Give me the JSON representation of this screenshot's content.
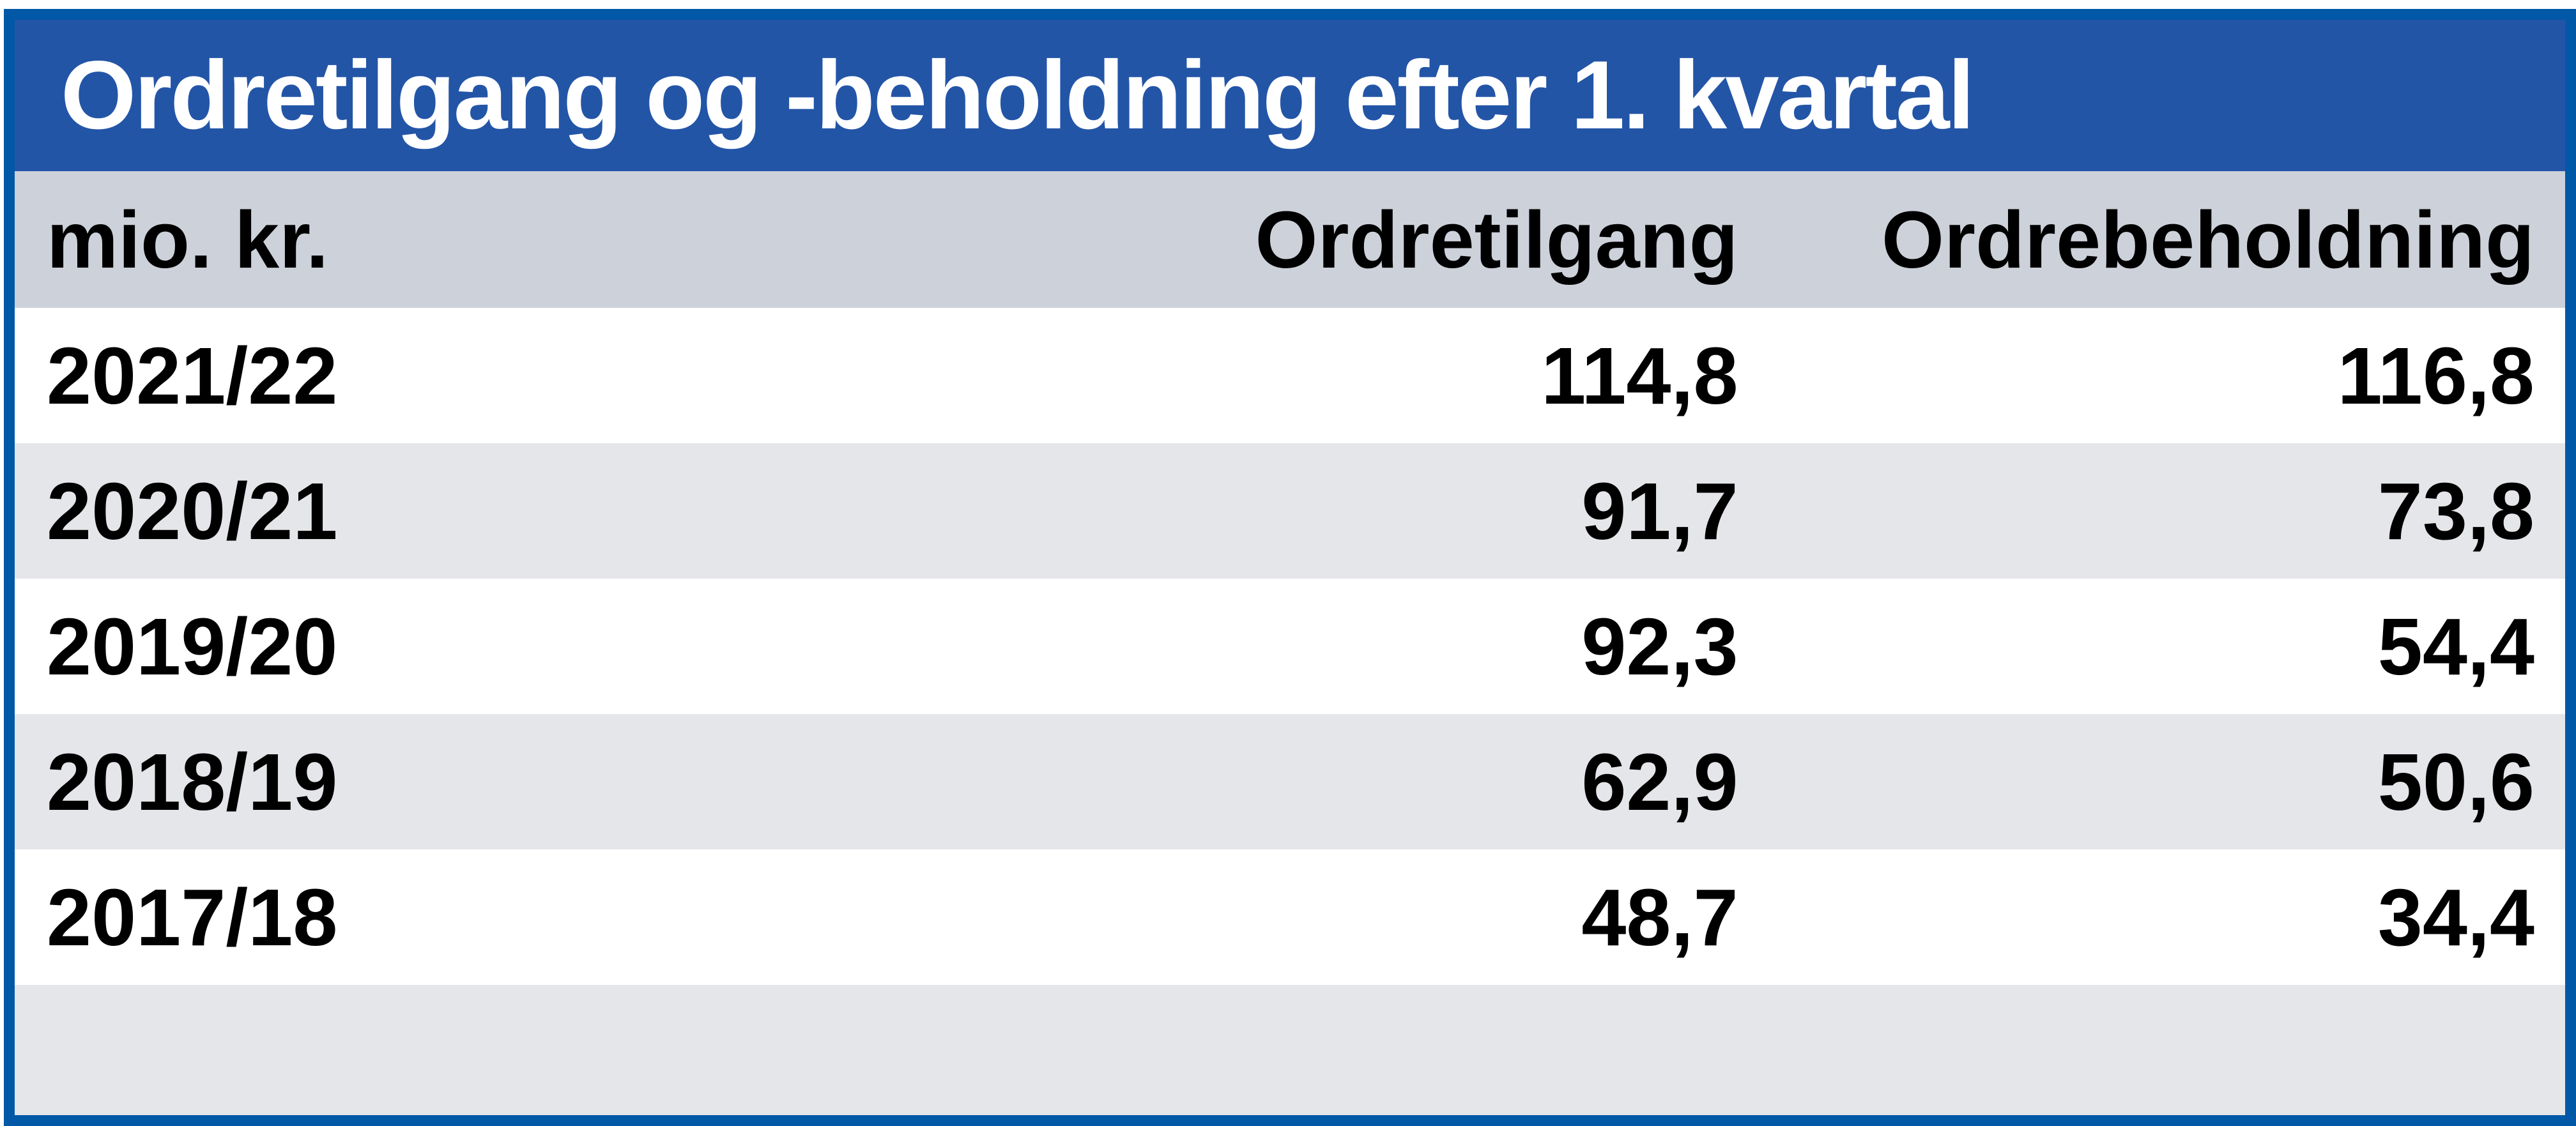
{
  "title": "Ordretilgang og -beholdning efter 1. kvartal",
  "table": {
    "unit_label": "mio. kr.",
    "columns": [
      "Ordretilgang",
      "Ordrebeholdning"
    ],
    "rows": [
      {
        "period": "2021/22",
        "ordretilgang": "114,8",
        "ordrebeholdning": "116,8"
      },
      {
        "period": "2020/21",
        "ordretilgang": "91,7",
        "ordrebeholdning": "73,8"
      },
      {
        "period": "2019/20",
        "ordretilgang": "92,3",
        "ordrebeholdning": "54,4"
      },
      {
        "period": "2018/19",
        "ordretilgang": "62,9",
        "ordrebeholdning": "50,6"
      },
      {
        "period": "2017/18",
        "ordretilgang": "48,7",
        "ordrebeholdning": "34,4"
      }
    ]
  },
  "colors": {
    "frame_blue": "#0058a6",
    "title_bar_blue": "#2355a7",
    "title_text": "#ffffff",
    "header_gray": "#cdd1da",
    "zebra_gray": "#e5e6e9",
    "row_white": "#ffffff",
    "body_text": "#000000"
  },
  "chart_data": {
    "type": "table",
    "title": "Ordretilgang og -beholdning efter 1. kvartal",
    "unit": "mio. kr.",
    "categories": [
      "2021/22",
      "2020/21",
      "2019/20",
      "2018/19",
      "2017/18"
    ],
    "series": [
      {
        "name": "Ordretilgang",
        "values": [
          114.8,
          91.7,
          92.3,
          62.9,
          48.7
        ]
      },
      {
        "name": "Ordrebeholdning",
        "values": [
          116.8,
          73.8,
          54.4,
          50.6,
          34.4
        ]
      }
    ],
    "layout": {
      "zebra_striping": true,
      "header_row": true,
      "grid": false
    }
  }
}
